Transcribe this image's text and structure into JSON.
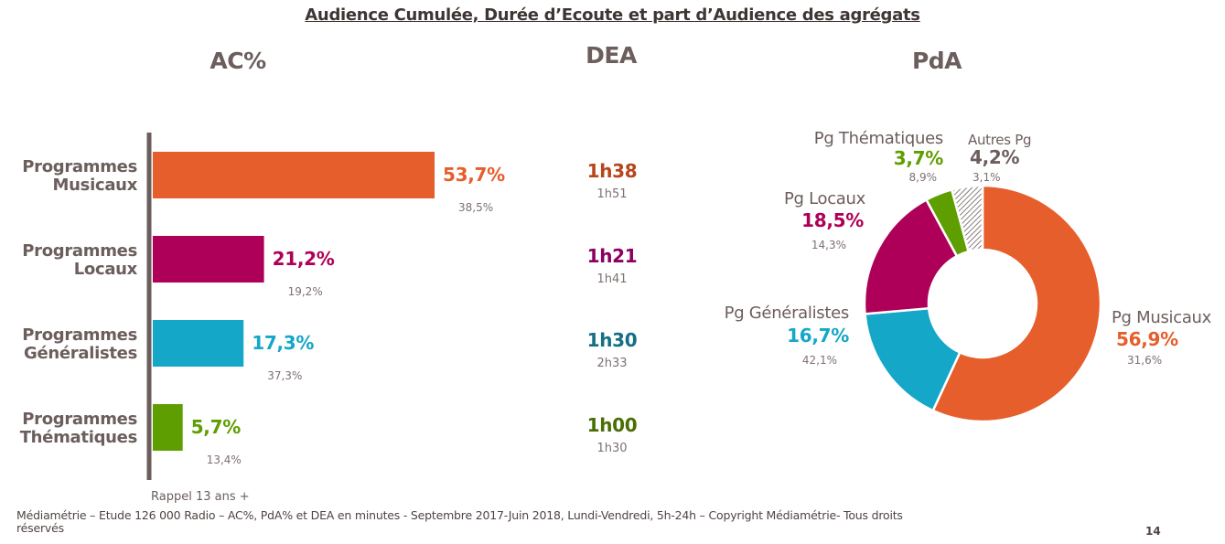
{
  "title": "Audience Cumulée, Durée d’Ecoute et part d’Audience des agrégats",
  "colors": {
    "musicaux": "#e55e2b",
    "locaux": "#ae0058",
    "generalistes": "#14a7c8",
    "thematiques": "#5f9e00",
    "autres": "#6b5e5c",
    "axis": "#6b5e5c",
    "dea_musicaux": "#b6461a",
    "dea_locaux": "#8c0060",
    "dea_generalistes": "#136f82",
    "dea_thematiques": "#4a6e05"
  },
  "chart_data": [
    {
      "type": "bar",
      "orientation": "horizontal",
      "title": "AC%",
      "categories": [
        "Programmes Musicaux",
        "Programmes Locaux",
        "Programmes Généralistes",
        "Programmes Thématiques"
      ],
      "values": [
        53.7,
        21.2,
        17.3,
        5.7
      ],
      "value_labels": [
        "53,7%",
        "21,2%",
        "17,3%",
        "5,7%"
      ],
      "reference_values": [
        38.5,
        19.2,
        37.3,
        13.4
      ],
      "reference_labels": [
        "38,5%",
        "19,2%",
        "37,3%",
        "13,4%"
      ],
      "reference_note": "Rappel 13 ans +",
      "xlim": [
        0,
        60
      ],
      "grid": false,
      "unit": "%"
    },
    {
      "type": "table",
      "title": "DEA",
      "rows": [
        {
          "category": "Programmes Musicaux",
          "value": "1h38",
          "reference": "1h51"
        },
        {
          "category": "Programmes Locaux",
          "value": "1h21",
          "reference": "1h41"
        },
        {
          "category": "Programmes Généralistes",
          "value": "1h30",
          "reference": "2h33"
        },
        {
          "category": "Programmes Thématiques",
          "value": "1h00",
          "reference": "1h30"
        }
      ]
    },
    {
      "type": "pie",
      "donut": true,
      "title": "PdA",
      "slices": [
        {
          "name": "Pg Musicaux",
          "value": 56.9,
          "label": "56,9%",
          "reference": "31,6%"
        },
        {
          "name": "Pg Généralistes",
          "value": 16.7,
          "label": "16,7%",
          "reference": "42,1%"
        },
        {
          "name": "Pg Locaux",
          "value": 18.5,
          "label": "18,5%",
          "reference": "14,3%"
        },
        {
          "name": "Pg Thématiques",
          "value": 3.7,
          "label": "3,7%",
          "reference": "8,9%"
        },
        {
          "name": "Autres Pg",
          "value": 4.2,
          "label": "4,2%",
          "reference": "3,1%"
        }
      ],
      "start_angle": "top, clockwise"
    }
  ],
  "footer": {
    "rappel": "Rappel 13 ans +",
    "source": "Médiamétrie – Etude 126 000 Radio – AC%, PdA% et DEA en minutes - Septembre 2017-Juin 2018, Lundi-Vendredi, 5h-24h – Copyright Médiamétrie- Tous droits réservés",
    "page_number": "14"
  }
}
